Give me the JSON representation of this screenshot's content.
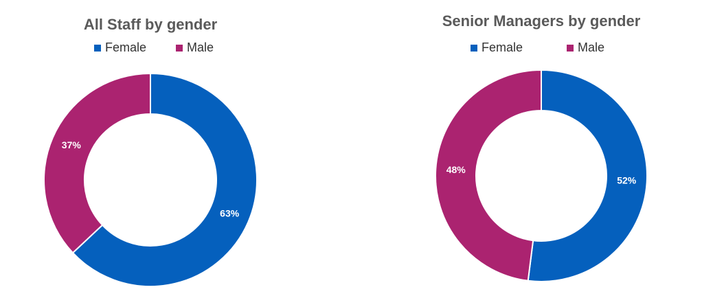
{
  "chart_data": [
    {
      "type": "donut",
      "title": "All Staff by gender",
      "categories": [
        "Female",
        "Male"
      ],
      "values": [
        63,
        37
      ],
      "value_labels": [
        "63%",
        "37%"
      ],
      "colors": [
        "#0560bd",
        "#ab2370"
      ]
    },
    {
      "type": "donut",
      "title": "Senior Managers by gender",
      "categories": [
        "Female",
        "Male"
      ],
      "values": [
        52,
        48
      ],
      "value_labels": [
        "52%",
        "48%"
      ],
      "colors": [
        "#0560bd",
        "#ab2370"
      ]
    }
  ]
}
